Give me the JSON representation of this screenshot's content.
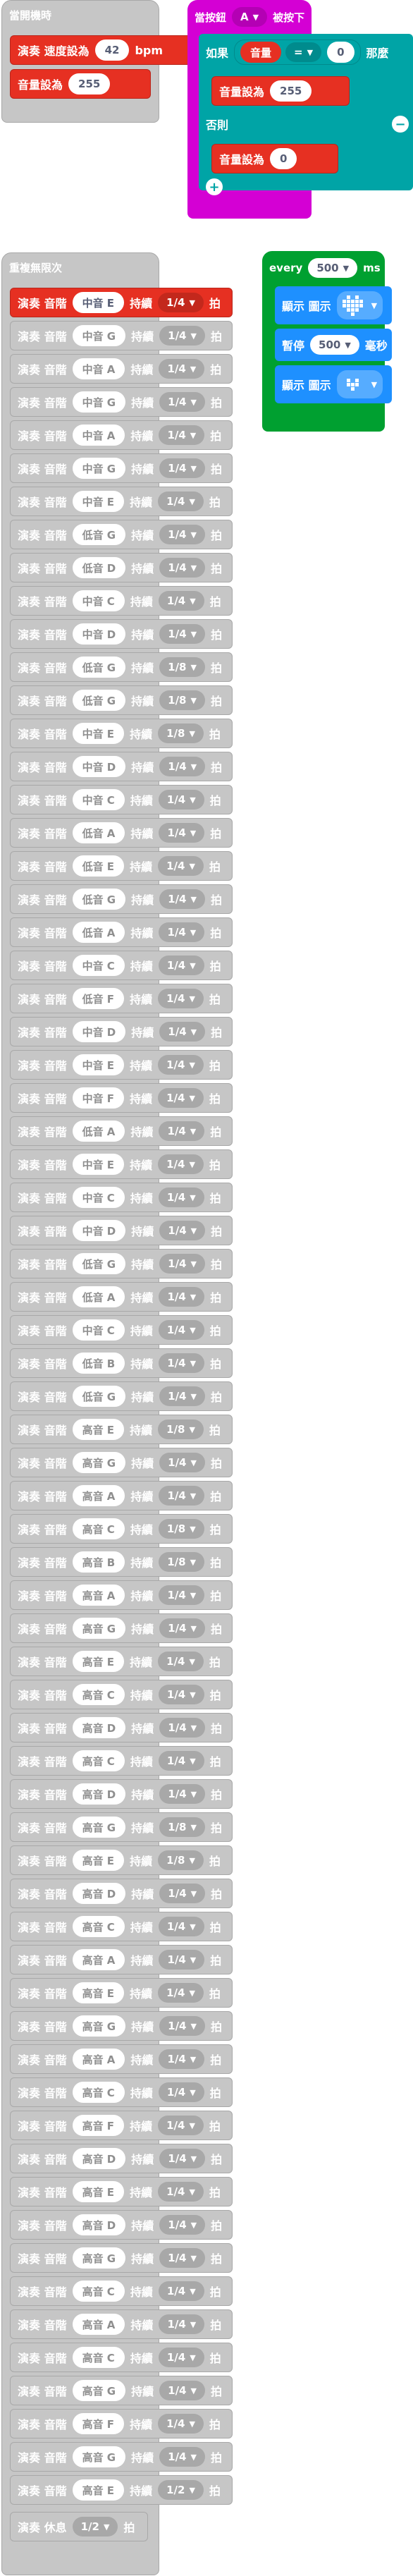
{
  "on_start": {
    "title": "當開機時",
    "tempo": {
      "label": "演奏 速度設為",
      "value": "42",
      "unit": "bpm"
    },
    "volume": {
      "label": "音量設為",
      "value": "255"
    }
  },
  "on_button": {
    "title_prefix": "當按鈕",
    "button": "A",
    "title_suffix": "被按下",
    "if_label": "如果",
    "volume_reporter": "音量",
    "operator": "=",
    "compare_value": "0",
    "then_label": "那麼",
    "then_set": {
      "label": "音量設為",
      "value": "255"
    },
    "else_label": "否則",
    "else_set": {
      "label": "音量設為",
      "value": "0"
    }
  },
  "every": {
    "label": "every",
    "ms_value": "500",
    "ms_unit": "ms",
    "show1_label": "顯示 圖示",
    "pause_label": "暫停",
    "pause_value": "500",
    "pause_unit": "毫秒",
    "show2_label": "顯示 圖示"
  },
  "forever": {
    "title": "重複無限次",
    "play_label": "演奏 音階",
    "duration_label": "持續",
    "beat_label": "拍",
    "rest_label": "演奏 休息",
    "rest_value": "1/2",
    "notes": [
      {
        "note": "中音 E",
        "dur": "1/4",
        "active": true
      },
      {
        "note": "中音 G",
        "dur": "1/4",
        "active": false
      },
      {
        "note": "中音 A",
        "dur": "1/4",
        "active": false
      },
      {
        "note": "中音 G",
        "dur": "1/4",
        "active": false
      },
      {
        "note": "中音 A",
        "dur": "1/4",
        "active": false
      },
      {
        "note": "中音 G",
        "dur": "1/4",
        "active": false
      },
      {
        "note": "中音 E",
        "dur": "1/4",
        "active": false
      },
      {
        "note": "低音 G",
        "dur": "1/4",
        "active": false
      },
      {
        "note": "低音 D",
        "dur": "1/4",
        "active": false
      },
      {
        "note": "中音 C",
        "dur": "1/4",
        "active": false
      },
      {
        "note": "中音 D",
        "dur": "1/4",
        "active": false
      },
      {
        "note": "低音 G",
        "dur": "1/8",
        "active": false
      },
      {
        "note": "低音 G",
        "dur": "1/8",
        "active": false
      },
      {
        "note": "中音 E",
        "dur": "1/8",
        "active": false
      },
      {
        "note": "中音 D",
        "dur": "1/4",
        "active": false
      },
      {
        "note": "中音 C",
        "dur": "1/4",
        "active": false
      },
      {
        "note": "低音 A",
        "dur": "1/4",
        "active": false
      },
      {
        "note": "低音 E",
        "dur": "1/4",
        "active": false
      },
      {
        "note": "低音 G",
        "dur": "1/4",
        "active": false
      },
      {
        "note": "低音 A",
        "dur": "1/4",
        "active": false
      },
      {
        "note": "中音 C",
        "dur": "1/4",
        "active": false
      },
      {
        "note": "低音 F",
        "dur": "1/4",
        "active": false
      },
      {
        "note": "中音 D",
        "dur": "1/4",
        "active": false
      },
      {
        "note": "中音 E",
        "dur": "1/4",
        "active": false
      },
      {
        "note": "中音 F",
        "dur": "1/4",
        "active": false
      },
      {
        "note": "低音 A",
        "dur": "1/4",
        "active": false
      },
      {
        "note": "中音 E",
        "dur": "1/4",
        "active": false
      },
      {
        "note": "中音 C",
        "dur": "1/4",
        "active": false
      },
      {
        "note": "中音 D",
        "dur": "1/4",
        "active": false
      },
      {
        "note": "低音 G",
        "dur": "1/4",
        "active": false
      },
      {
        "note": "低音 A",
        "dur": "1/4",
        "active": false
      },
      {
        "note": "中音 C",
        "dur": "1/4",
        "active": false
      },
      {
        "note": "低音 B",
        "dur": "1/4",
        "active": false
      },
      {
        "note": "低音 G",
        "dur": "1/4",
        "active": false
      },
      {
        "note": "高音 E",
        "dur": "1/8",
        "active": false
      },
      {
        "note": "高音 G",
        "dur": "1/4",
        "active": false
      },
      {
        "note": "高音 A",
        "dur": "1/4",
        "active": false
      },
      {
        "note": "高音 C",
        "dur": "1/8",
        "active": false
      },
      {
        "note": "高音 B",
        "dur": "1/8",
        "active": false
      },
      {
        "note": "高音 A",
        "dur": "1/4",
        "active": false
      },
      {
        "note": "高音 G",
        "dur": "1/4",
        "active": false
      },
      {
        "note": "高音 E",
        "dur": "1/4",
        "active": false
      },
      {
        "note": "高音 C",
        "dur": "1/4",
        "active": false
      },
      {
        "note": "高音 D",
        "dur": "1/4",
        "active": false
      },
      {
        "note": "高音 C",
        "dur": "1/4",
        "active": false
      },
      {
        "note": "高音 D",
        "dur": "1/4",
        "active": false
      },
      {
        "note": "高音 G",
        "dur": "1/8",
        "active": false
      },
      {
        "note": "高音 E",
        "dur": "1/8",
        "active": false
      },
      {
        "note": "高音 D",
        "dur": "1/4",
        "active": false
      },
      {
        "note": "高音 C",
        "dur": "1/4",
        "active": false
      },
      {
        "note": "高音 A",
        "dur": "1/4",
        "active": false
      },
      {
        "note": "高音 E",
        "dur": "1/4",
        "active": false
      },
      {
        "note": "高音 G",
        "dur": "1/4",
        "active": false
      },
      {
        "note": "高音 A",
        "dur": "1/4",
        "active": false
      },
      {
        "note": "高音 C",
        "dur": "1/4",
        "active": false
      },
      {
        "note": "高音 F",
        "dur": "1/4",
        "active": false
      },
      {
        "note": "高音 D",
        "dur": "1/4",
        "active": false
      },
      {
        "note": "高音 E",
        "dur": "1/4",
        "active": false
      },
      {
        "note": "高音 D",
        "dur": "1/4",
        "active": false
      },
      {
        "note": "高音 G",
        "dur": "1/4",
        "active": false
      },
      {
        "note": "高音 C",
        "dur": "1/4",
        "active": false
      },
      {
        "note": "高音 A",
        "dur": "1/4",
        "active": false
      },
      {
        "note": "高音 C",
        "dur": "1/4",
        "active": false
      },
      {
        "note": "高音 G",
        "dur": "1/4",
        "active": false
      },
      {
        "note": "高音 F",
        "dur": "1/4",
        "active": false
      },
      {
        "note": "高音 G",
        "dur": "1/4",
        "active": false
      },
      {
        "note": "高音 E",
        "dur": "1/2",
        "active": false
      }
    ]
  }
}
